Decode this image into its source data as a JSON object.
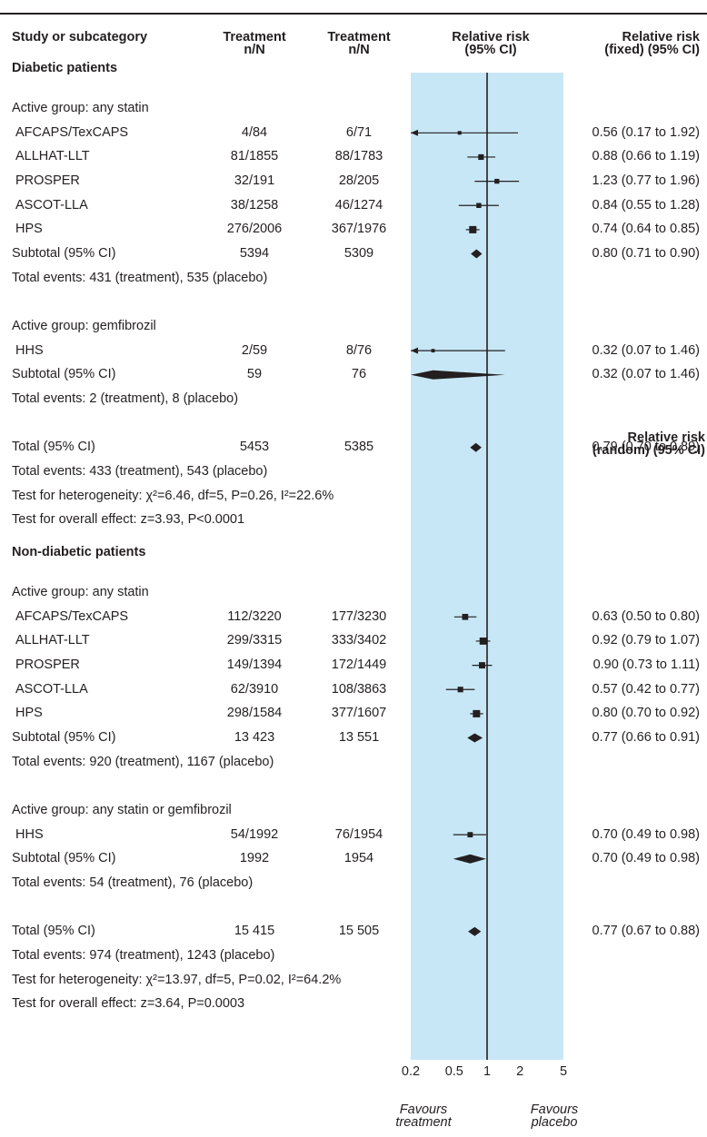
{
  "headers": {
    "study": "Study or subcategory",
    "treatment": [
      "Treatment",
      "n/N"
    ],
    "control": [
      "Treatment",
      "n/N"
    ],
    "rr": [
      "Relative risk",
      "(95% CI)"
    ],
    "fixed": [
      "Relative risk",
      "(fixed) (95% CI)"
    ],
    "random": [
      "Relative risk",
      "(random) (95% CI)"
    ]
  },
  "rows": [
    {
      "kind": "section",
      "label": "Diabetic patients"
    },
    {
      "kind": "group",
      "label": "Active group: any statin"
    },
    {
      "kind": "study",
      "label": "AFCAPS/TexCAPS",
      "t": "4/84",
      "c": "6/71",
      "ci": "0.56 (0.17 to 1.92)"
    },
    {
      "kind": "study",
      "label": "ALLHAT-LLT",
      "t": "81/1855",
      "c": "88/1783",
      "ci": "0.88 (0.66 to 1.19)"
    },
    {
      "kind": "study",
      "label": "PROSPER",
      "t": "32/191",
      "c": "28/205",
      "ci": "1.23 (0.77 to 1.96)"
    },
    {
      "kind": "study",
      "label": "ASCOT-LLA",
      "t": "38/1258",
      "c": "46/1274",
      "ci": "0.84 (0.55 to 1.28)"
    },
    {
      "kind": "study",
      "label": "HPS",
      "t": "276/2006",
      "c": "367/1976",
      "ci": "0.74 (0.64 to 0.85)"
    },
    {
      "kind": "subtotal",
      "label": "Subtotal (95% CI)",
      "t": "5394",
      "c": "5309",
      "ci": "0.80 (0.71 to 0.90)"
    },
    {
      "kind": "note",
      "label": "Total events: 431 (treatment), 535 (placebo)"
    },
    {
      "kind": "blank"
    },
    {
      "kind": "group",
      "label": "Active group: gemfibrozil"
    },
    {
      "kind": "study",
      "label": "HHS",
      "t": "2/59",
      "c": "8/76",
      "ci": "0.32 (0.07 to 1.46)"
    },
    {
      "kind": "subtotal",
      "label": "Subtotal (95% CI)",
      "t": "59",
      "c": "76",
      "ci": "0.32 (0.07 to 1.46)"
    },
    {
      "kind": "note",
      "label": "Total events: 2 (treatment), 8 (placebo)"
    },
    {
      "kind": "blank"
    },
    {
      "kind": "subtotal",
      "label": "Total (95% CI)",
      "t": "5453",
      "c": "5385",
      "ci": "0.79 (0.70 to 0.89)"
    },
    {
      "kind": "note",
      "label": "Total events: 433 (treatment), 543 (placebo)"
    },
    {
      "kind": "note",
      "label": "Test for heterogeneity: χ²=6.46, df=5, P=0.26, I²=22.6%"
    },
    {
      "kind": "note",
      "label": "Test for overall effect: z=3.93, P<0.0001"
    },
    {
      "kind": "blank"
    },
    {
      "kind": "section",
      "label": "Non-diabetic patients"
    },
    {
      "kind": "group",
      "label": "Active group: any statin"
    },
    {
      "kind": "study",
      "label": "AFCAPS/TexCAPS",
      "t": "112/3220",
      "c": "177/3230",
      "ci": "0.63 (0.50 to 0.80)"
    },
    {
      "kind": "study",
      "label": "ALLHAT-LLT",
      "t": "299/3315",
      "c": "333/3402",
      "ci": "0.92 (0.79 to 1.07)"
    },
    {
      "kind": "study",
      "label": "PROSPER",
      "t": "149/1394",
      "c": "172/1449",
      "ci": "0.90 (0.73 to 1.11)"
    },
    {
      "kind": "study",
      "label": "ASCOT-LLA",
      "t": "62/3910",
      "c": "108/3863",
      "ci": "0.57 (0.42 to 0.77)"
    },
    {
      "kind": "study",
      "label": "HPS",
      "t": "298/1584",
      "c": "377/1607",
      "ci": "0.80 (0.70 to 0.92)"
    },
    {
      "kind": "subtotal",
      "label": "Subtotal (95% CI)",
      "t": "13 423",
      "c": "13 551",
      "ci": "0.77 (0.66 to 0.91)"
    },
    {
      "kind": "note",
      "label": "Total events: 920 (treatment), 1167 (placebo)"
    },
    {
      "kind": "blank"
    },
    {
      "kind": "group",
      "label": "Active group: any statin or gemfibrozil"
    },
    {
      "kind": "study",
      "label": "HHS",
      "t": "54/1992",
      "c": "76/1954",
      "ci": "0.70 (0.49 to 0.98)"
    },
    {
      "kind": "subtotal",
      "label": "Subtotal (95% CI)",
      "t": "1992",
      "c": "1954",
      "ci": "0.70 (0.49 to 0.98)"
    },
    {
      "kind": "note",
      "label": "Total events: 54 (treatment), 76 (placebo)"
    },
    {
      "kind": "blank"
    },
    {
      "kind": "subtotal",
      "label": "Total (95% CI)",
      "t": "15 415",
      "c": "15 505",
      "ci": "0.77 (0.67 to 0.88)"
    },
    {
      "kind": "note",
      "label": "Total events: 974 (treatment), 1243 (placebo)"
    },
    {
      "kind": "note",
      "label": "Test for heterogeneity: χ²=13.97, df=5, P=0.02, I²=64.2%"
    },
    {
      "kind": "note",
      "label": "Test for overall effect: z=3.64, P=0.0003"
    }
  ],
  "chart_data": {
    "type": "forest",
    "scale": "log",
    "xlim": [
      0.2,
      5
    ],
    "xticks": [
      "0.2",
      "0.5",
      "1",
      "2",
      "5"
    ],
    "reference_line": 1,
    "favours_left": [
      "Favours",
      "treatment"
    ],
    "favours_right": [
      "Favours",
      "placebo"
    ],
    "series": [
      {
        "study": "AFCAPS/TexCAPS",
        "group": "Diabetic",
        "rr": 0.56,
        "lo": 0.17,
        "hi": 1.92
      },
      {
        "study": "ALLHAT-LLT",
        "group": "Diabetic",
        "rr": 0.88,
        "lo": 0.66,
        "hi": 1.19
      },
      {
        "study": "PROSPER",
        "group": "Diabetic",
        "rr": 1.23,
        "lo": 0.77,
        "hi": 1.96
      },
      {
        "study": "ASCOT-LLA",
        "group": "Diabetic",
        "rr": 0.84,
        "lo": 0.55,
        "hi": 1.28
      },
      {
        "study": "HPS",
        "group": "Diabetic",
        "rr": 0.74,
        "lo": 0.64,
        "hi": 0.85
      },
      {
        "study": "Subtotal (95% CI)",
        "group": "Diabetic",
        "rr": 0.8,
        "lo": 0.71,
        "hi": 0.9
      },
      {
        "study": "HHS",
        "group": "Diabetic",
        "rr": 0.32,
        "lo": 0.07,
        "hi": 1.46
      },
      {
        "study": "Subtotal (95% CI)",
        "group": "Diabetic",
        "rr": 0.32,
        "lo": 0.07,
        "hi": 1.46
      },
      {
        "study": "Total (95% CI)",
        "group": "Diabetic",
        "rr": 0.79,
        "lo": 0.7,
        "hi": 0.89
      },
      {
        "study": "AFCAPS/TexCAPS",
        "group": "Non-diabetic",
        "rr": 0.63,
        "lo": 0.5,
        "hi": 0.8
      },
      {
        "study": "ALLHAT-LLT",
        "group": "Non-diabetic",
        "rr": 0.92,
        "lo": 0.79,
        "hi": 1.07
      },
      {
        "study": "PROSPER",
        "group": "Non-diabetic",
        "rr": 0.9,
        "lo": 0.73,
        "hi": 1.11
      },
      {
        "study": "ASCOT-LLA",
        "group": "Non-diabetic",
        "rr": 0.57,
        "lo": 0.42,
        "hi": 0.77
      },
      {
        "study": "HPS",
        "group": "Non-diabetic",
        "rr": 0.8,
        "lo": 0.7,
        "hi": 0.92
      },
      {
        "study": "Subtotal (95% CI)",
        "group": "Non-diabetic",
        "rr": 0.77,
        "lo": 0.66,
        "hi": 0.91
      },
      {
        "study": "HHS",
        "group": "Non-diabetic",
        "rr": 0.7,
        "lo": 0.49,
        "hi": 0.98
      },
      {
        "study": "Subtotal (95% CI)",
        "group": "Non-diabetic",
        "rr": 0.7,
        "lo": 0.49,
        "hi": 0.98
      },
      {
        "study": "Total (95% CI)",
        "group": "Non-diabetic",
        "rr": 0.77,
        "lo": 0.67,
        "hi": 0.88
      }
    ]
  },
  "colors": {
    "band": "#c7e7f6",
    "ink": "#231f20"
  }
}
